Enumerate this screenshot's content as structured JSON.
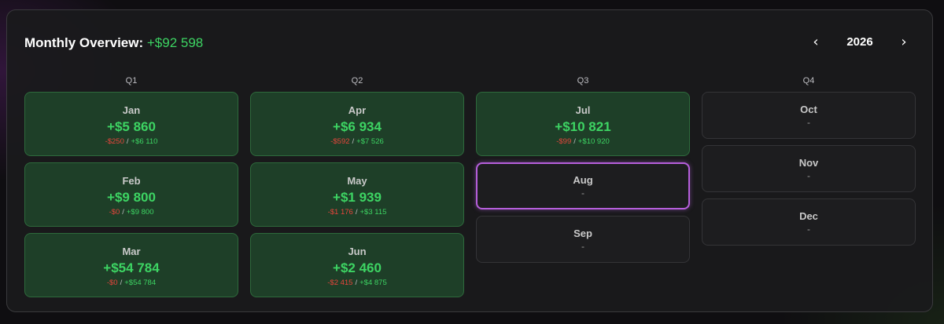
{
  "header": {
    "title_label": "Monthly Overview:",
    "total": "+$92 598",
    "year": "2026",
    "prev_icon": "chevron-left-icon",
    "next_icon": "chevron-right-icon",
    "prev_glyph": "‹",
    "next_glyph": "›"
  },
  "colors": {
    "positive": "#3dd463",
    "negative": "#e8453c",
    "selected_border": "#b65fdc",
    "filled_card_bg": "#1e3f28"
  },
  "quarters": [
    {
      "label": "Q1",
      "months": [
        {
          "name": "Jan",
          "value": "+$5 860",
          "negative": "-$250",
          "separator": "/",
          "positive": "+$6 110"
        },
        {
          "name": "Feb",
          "value": "+$9 800",
          "negative": "-$0",
          "separator": "/",
          "positive": "+$9 800"
        },
        {
          "name": "Mar",
          "value": "+$54 784",
          "negative": "-$0",
          "separator": "/",
          "positive": "+$54 784"
        }
      ]
    },
    {
      "label": "Q2",
      "months": [
        {
          "name": "Apr",
          "value": "+$6 934",
          "negative": "-$592",
          "separator": "/",
          "positive": "+$7 526"
        },
        {
          "name": "May",
          "value": "+$1 939",
          "negative": "-$1 176",
          "separator": "/",
          "positive": "+$3 115"
        },
        {
          "name": "Jun",
          "value": "+$2 460",
          "negative": "-$2 415",
          "separator": "/",
          "positive": "+$4 875"
        }
      ]
    },
    {
      "label": "Q3",
      "months": [
        {
          "name": "Jul",
          "value": "+$10 821",
          "negative": "-$99",
          "separator": "/",
          "positive": "+$10 920"
        },
        {
          "name": "Aug",
          "value": "-",
          "selected": true
        },
        {
          "name": "Sep",
          "value": "-"
        }
      ]
    },
    {
      "label": "Q4",
      "months": [
        {
          "name": "Oct",
          "value": "-"
        },
        {
          "name": "Nov",
          "value": "-"
        },
        {
          "name": "Dec",
          "value": "-"
        }
      ]
    }
  ]
}
